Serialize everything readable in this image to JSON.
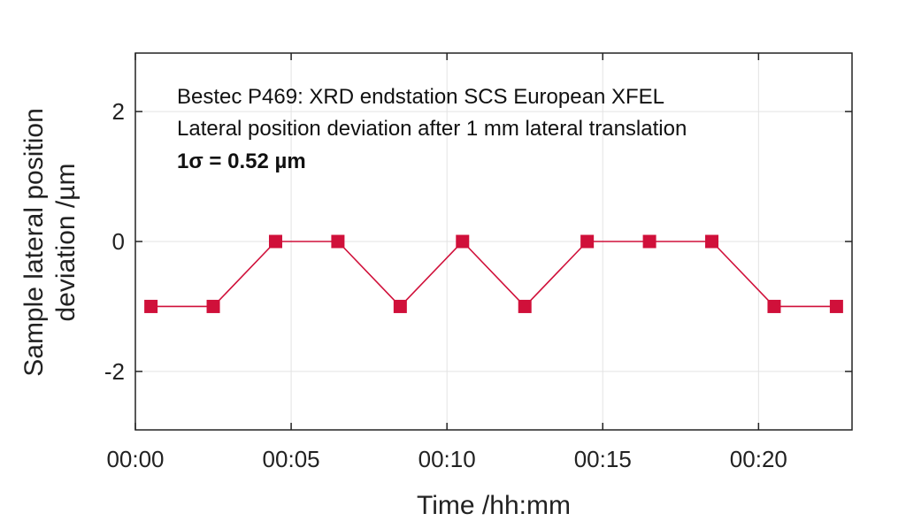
{
  "chart_data": {
    "type": "line",
    "title": "",
    "xlabel": "Time /hh:mm",
    "ylabel_lines": [
      "Sample lateral position",
      "deviation /µm"
    ],
    "x_minutes": [
      0.5,
      2.5,
      4.5,
      6.5,
      8.5,
      10.5,
      12.5,
      14.5,
      16.5,
      18.5,
      20.5,
      22.5
    ],
    "series": [
      {
        "values": [
          -1,
          -1,
          0,
          0,
          -1,
          0,
          -1,
          0,
          0,
          0,
          -1,
          -1
        ]
      }
    ],
    "xlim": [
      0,
      23
    ],
    "ylim": [
      -2.9,
      2.9
    ],
    "x_ticks": [
      0,
      5,
      10,
      15,
      20
    ],
    "x_tick_labels": [
      "00:00",
      "00:05",
      "00:10",
      "00:15",
      "00:20"
    ],
    "y_ticks": [
      -2,
      0,
      2
    ],
    "y_tick_labels": [
      "-2",
      "0",
      "2"
    ],
    "grid": true,
    "annotations": [
      "Bestec P469: XRD endstation SCS European XFEL",
      "Lateral position deviation after 1 mm lateral translation",
      "1σ = 0.52 µm"
    ],
    "series_color": "#d0103a",
    "marker": "square"
  }
}
